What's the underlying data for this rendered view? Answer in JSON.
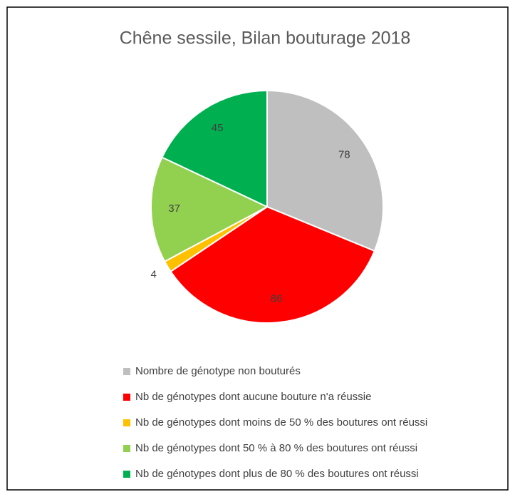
{
  "chart_data": {
    "type": "pie",
    "title": "Chêne sessile, Bilan bouturage 2018",
    "categories": [
      "Nombre de génotype non bouturés",
      "Nb de génotypes dont aucune bouture n'a réussie",
      "Nb de génotypes dont moins de 50 % des boutures ont réussi",
      "Nb de génotypes dont 50 % à 80 % des boutures ont réussi",
      "Nb de génotypes dont plus de 80 % des boutures ont réussi"
    ],
    "values": [
      78,
      86,
      4,
      37,
      45
    ],
    "colors": [
      "#bfbfbf",
      "#ff0000",
      "#ffc000",
      "#92d050",
      "#00b050"
    ],
    "legend": "bottom"
  }
}
